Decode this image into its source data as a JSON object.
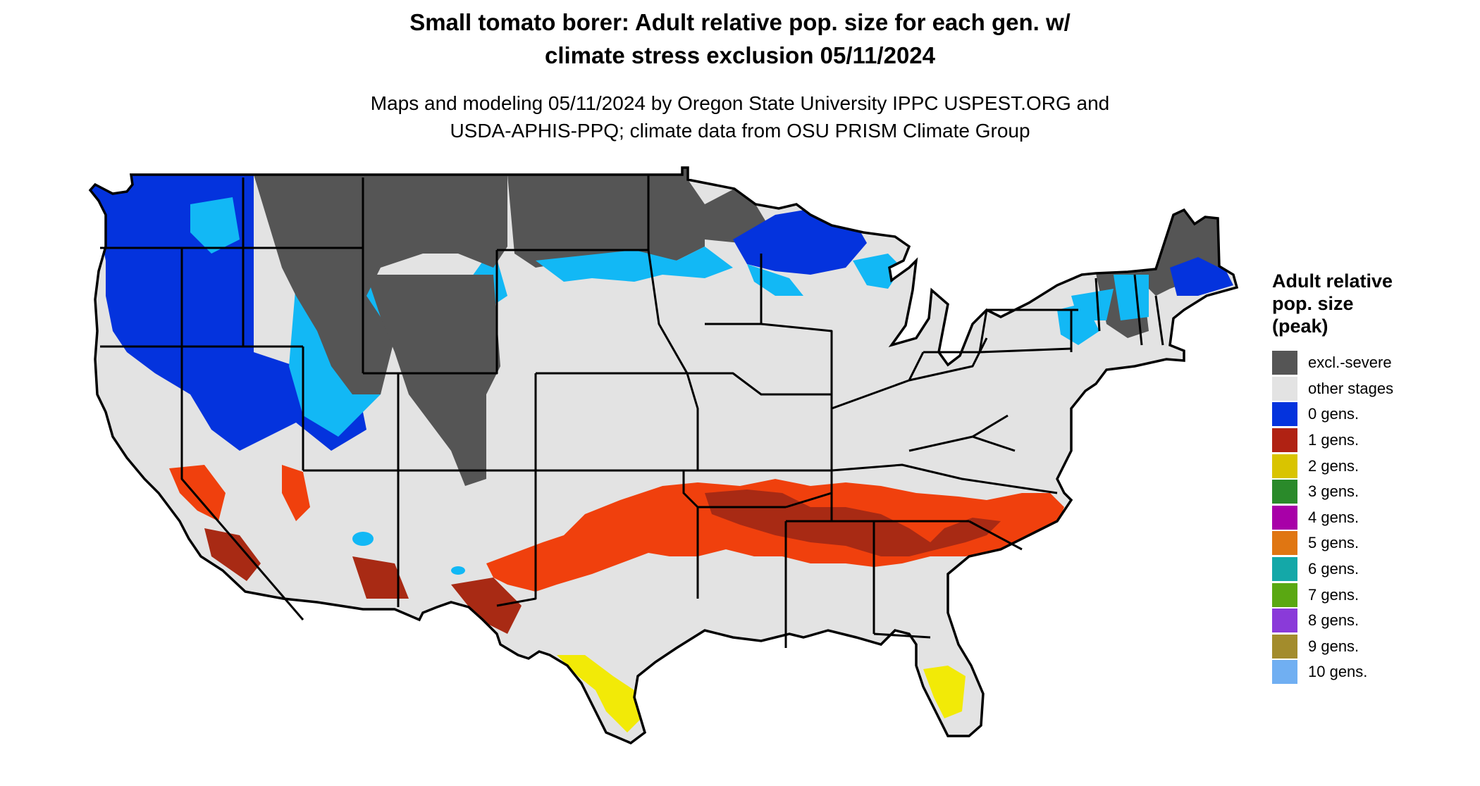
{
  "title": {
    "line1": "Small tomato borer: Adult relative pop. size for each gen. w/",
    "line2": "climate stress exclusion 05/11/2024"
  },
  "subtitle": {
    "line1": "Maps and modeling 05/11/2024 by Oregon State University IPPC USPEST.ORG and",
    "line2": "USDA-APHIS-PPQ; climate data from OSU PRISM Climate Group"
  },
  "legend": {
    "title_lines": [
      "Adult relative",
      "pop. size",
      "(peak)"
    ],
    "items": [
      {
        "label": "excl.-severe",
        "color": "#555555"
      },
      {
        "label": "other stages",
        "color": "#e3e3e3"
      },
      {
        "label": "0 gens.",
        "color": "#0433dd"
      },
      {
        "label": "1 gens.",
        "color": "#b02213"
      },
      {
        "label": "2 gens.",
        "color": "#d9c400"
      },
      {
        "label": "3 gens.",
        "color": "#2a8a2a"
      },
      {
        "label": "4 gens.",
        "color": "#a800a8"
      },
      {
        "label": "5 gens.",
        "color": "#e07612"
      },
      {
        "label": "6 gens.",
        "color": "#14a8a8"
      },
      {
        "label": "7 gens.",
        "color": "#5aa812"
      },
      {
        "label": "8 gens.",
        "color": "#8a3ad9"
      },
      {
        "label": "9 gens.",
        "color": "#a38c2c"
      },
      {
        "label": "10 gens.",
        "color": "#70aff2"
      }
    ]
  },
  "map_colors": {
    "base": "#e3e3e3",
    "excluded": "#555555",
    "zero_gen_dark": "#0433dd",
    "zero_gen_light": "#12b8f5",
    "one_gen_dark": "#a82a14",
    "one_gen_bright": "#f0400d",
    "two_gen": "#f2ea07",
    "three_gen": "#2a8a2a",
    "border": "#000000"
  }
}
